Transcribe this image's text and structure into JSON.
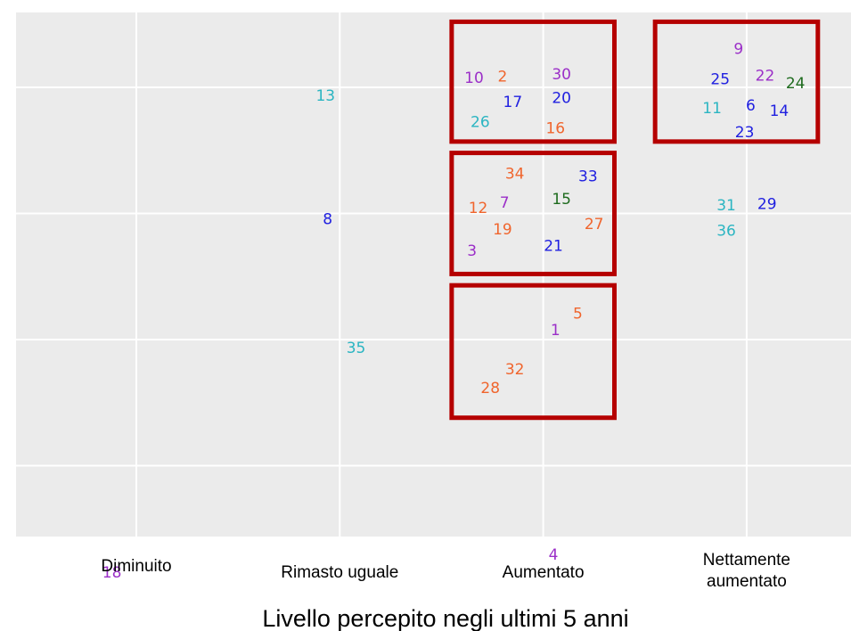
{
  "chart_data": {
    "type": "scatter",
    "xlabel": "Livello percepito negli ultimi 5 anni",
    "x_categories": [
      [
        "Diminuito"
      ],
      [
        "Rimasto uguale"
      ],
      [
        "Aumentato"
      ],
      [
        "Nettamente",
        "aumentato"
      ]
    ],
    "grid": true,
    "colors": {
      "panel": "#ebebeb",
      "gridline": "#ffffff",
      "highlight_box": "#b50000",
      "orange": "#f0652d",
      "purple": "#9b2fc8",
      "blue": "#2020e0",
      "teal": "#2bb5c2",
      "green": "#1e6b1e"
    },
    "points": [
      {
        "label": "18",
        "category": "Diminuito",
        "x": 0.88,
        "y": 0.15,
        "color": "purple"
      },
      {
        "label": "13",
        "category": "Rimasto uguale",
        "x": 1.93,
        "y": 3.93,
        "color": "teal"
      },
      {
        "label": "8",
        "category": "Rimasto uguale",
        "x": 1.94,
        "y": 2.95,
        "color": "blue"
      },
      {
        "label": "35",
        "category": "Rimasto uguale",
        "x": 2.08,
        "y": 1.93,
        "color": "teal"
      },
      {
        "label": "10",
        "category": "Aumentato",
        "x": 2.66,
        "y": 4.07,
        "color": "purple"
      },
      {
        "label": "2",
        "category": "Aumentato",
        "x": 2.8,
        "y": 4.08,
        "color": "orange"
      },
      {
        "label": "30",
        "category": "Aumentato",
        "x": 3.09,
        "y": 4.1,
        "color": "purple"
      },
      {
        "label": "17",
        "category": "Aumentato",
        "x": 2.85,
        "y": 3.88,
        "color": "blue"
      },
      {
        "label": "20",
        "category": "Aumentato",
        "x": 3.09,
        "y": 3.91,
        "color": "blue"
      },
      {
        "label": "26",
        "category": "Aumentato",
        "x": 2.69,
        "y": 3.72,
        "color": "teal"
      },
      {
        "label": "16",
        "category": "Aumentato",
        "x": 3.06,
        "y": 3.67,
        "color": "orange"
      },
      {
        "label": "34",
        "category": "Aumentato",
        "x": 2.86,
        "y": 3.31,
        "color": "orange"
      },
      {
        "label": "33",
        "category": "Aumentato",
        "x": 3.22,
        "y": 3.29,
        "color": "blue"
      },
      {
        "label": "12",
        "category": "Aumentato",
        "x": 2.68,
        "y": 3.04,
        "color": "orange"
      },
      {
        "label": "7",
        "category": "Aumentato",
        "x": 2.81,
        "y": 3.08,
        "color": "purple"
      },
      {
        "label": "15",
        "category": "Aumentato",
        "x": 3.09,
        "y": 3.11,
        "color": "green"
      },
      {
        "label": "19",
        "category": "Aumentato",
        "x": 2.8,
        "y": 2.87,
        "color": "orange"
      },
      {
        "label": "27",
        "category": "Aumentato",
        "x": 3.25,
        "y": 2.91,
        "color": "orange"
      },
      {
        "label": "3",
        "category": "Aumentato",
        "x": 2.65,
        "y": 2.7,
        "color": "purple"
      },
      {
        "label": "21",
        "category": "Aumentato",
        "x": 3.05,
        "y": 2.74,
        "color": "blue"
      },
      {
        "label": "5",
        "category": "Aumentato",
        "x": 3.17,
        "y": 2.2,
        "color": "orange"
      },
      {
        "label": "1",
        "category": "Aumentato",
        "x": 3.06,
        "y": 2.07,
        "color": "purple"
      },
      {
        "label": "32",
        "category": "Aumentato",
        "x": 2.86,
        "y": 1.76,
        "color": "orange"
      },
      {
        "label": "28",
        "category": "Aumentato",
        "x": 2.74,
        "y": 1.61,
        "color": "orange"
      },
      {
        "label": "4",
        "category": "Aumentato",
        "x": 3.05,
        "y": 0.29,
        "color": "purple"
      },
      {
        "label": "9",
        "category": "Nettamente aumentato",
        "x": 3.96,
        "y": 4.3,
        "color": "purple"
      },
      {
        "label": "25",
        "category": "Nettamente aumentato",
        "x": 3.87,
        "y": 4.06,
        "color": "blue"
      },
      {
        "label": "22",
        "category": "Nettamente aumentato",
        "x": 4.09,
        "y": 4.09,
        "color": "purple"
      },
      {
        "label": "24",
        "category": "Nettamente aumentato",
        "x": 4.24,
        "y": 4.03,
        "color": "green"
      },
      {
        "label": "11",
        "category": "Nettamente aumentato",
        "x": 3.83,
        "y": 3.83,
        "color": "teal"
      },
      {
        "label": "6",
        "category": "Nettamente aumentato",
        "x": 4.02,
        "y": 3.85,
        "color": "blue"
      },
      {
        "label": "14",
        "category": "Nettamente aumentato",
        "x": 4.16,
        "y": 3.81,
        "color": "blue"
      },
      {
        "label": "23",
        "category": "Nettamente aumentato",
        "x": 3.99,
        "y": 3.64,
        "color": "blue"
      },
      {
        "label": "31",
        "category": "Nettamente aumentato",
        "x": 3.9,
        "y": 3.06,
        "color": "teal"
      },
      {
        "label": "29",
        "category": "Nettamente aumentato",
        "x": 4.1,
        "y": 3.07,
        "color": "blue"
      },
      {
        "label": "36",
        "category": "Nettamente aumentato",
        "x": 3.9,
        "y": 2.86,
        "color": "teal"
      }
    ],
    "highlight_boxes": [
      {
        "x": [
          2.55,
          3.35
        ],
        "y": [
          3.57,
          4.52
        ]
      },
      {
        "x": [
          2.55,
          3.35
        ],
        "y": [
          2.52,
          3.48
        ]
      },
      {
        "x": [
          2.55,
          3.35
        ],
        "y": [
          1.38,
          2.43
        ]
      },
      {
        "x": [
          3.55,
          4.35
        ],
        "y": [
          3.57,
          4.52
        ]
      }
    ]
  }
}
